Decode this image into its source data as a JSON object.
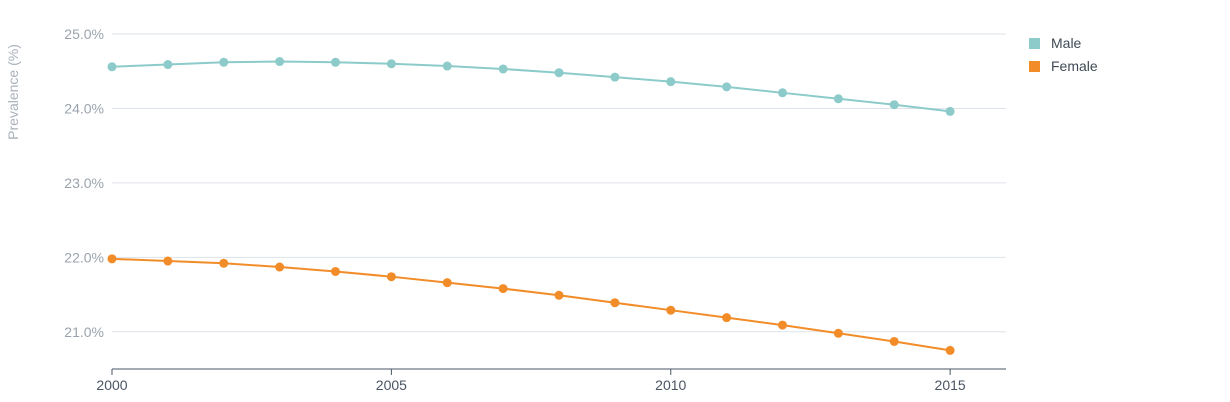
{
  "chart_data": {
    "type": "line",
    "title": "",
    "xlabel": "",
    "ylabel": "Prevalence (%)",
    "x": [
      2000,
      2001,
      2002,
      2003,
      2004,
      2005,
      2006,
      2007,
      2008,
      2009,
      2010,
      2011,
      2012,
      2013,
      2014,
      2015
    ],
    "xlim": [
      2000,
      2016
    ],
    "x_ticks": [
      2000,
      2005,
      2010,
      2015
    ],
    "x_tick_labels": [
      "2000",
      "2005",
      "2010",
      "2015"
    ],
    "ylim": [
      20.5,
      25.0
    ],
    "y_ticks": [
      21.0,
      22.0,
      23.0,
      24.0,
      25.0
    ],
    "y_tick_labels": [
      "21.0%",
      "22.0%",
      "23.0%",
      "24.0%",
      "25.0%"
    ],
    "grid": true,
    "legend_position": "top-right",
    "series": [
      {
        "name": "Male",
        "color": "#8ccbca",
        "values": [
          24.56,
          24.59,
          24.62,
          24.63,
          24.62,
          24.6,
          24.57,
          24.53,
          24.48,
          24.42,
          24.36,
          24.29,
          24.21,
          24.13,
          24.05,
          23.96
        ]
      },
      {
        "name": "Female",
        "color": "#f28c28",
        "values": [
          21.98,
          21.95,
          21.92,
          21.87,
          21.81,
          21.74,
          21.66,
          21.58,
          21.49,
          21.39,
          21.29,
          21.19,
          21.09,
          20.98,
          20.87,
          20.75
        ]
      }
    ]
  }
}
